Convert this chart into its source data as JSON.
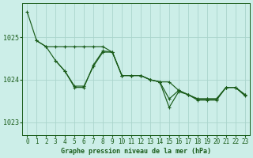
{
  "title": "Graphe pression niveau de la mer (hPa)",
  "bg_color": "#cceee8",
  "grid_color": "#aad4cc",
  "line_color": "#1a5c1a",
  "xlim": [
    -0.5,
    23.5
  ],
  "ylim": [
    1022.7,
    1025.8
  ],
  "yticks": [
    1023,
    1024,
    1025
  ],
  "xticks": [
    0,
    1,
    2,
    3,
    4,
    5,
    6,
    7,
    8,
    9,
    10,
    11,
    12,
    13,
    14,
    15,
    16,
    17,
    18,
    19,
    20,
    21,
    22,
    23
  ],
  "lines": [
    {
      "x": [
        0,
        1,
        2,
        3,
        4,
        5,
        6,
        7,
        8,
        9,
        10,
        11,
        12,
        13,
        14
      ],
      "y": [
        1025.6,
        1024.92,
        1024.78,
        1024.78,
        1024.78,
        1024.78,
        1024.78,
        1024.78,
        1024.78,
        1024.65,
        1024.1,
        1024.1,
        1024.1,
        1024.0,
        1023.95
      ]
    },
    {
      "x": [
        1,
        2,
        3,
        4,
        5,
        6,
        7,
        8,
        9,
        10,
        11,
        12,
        13,
        14
      ],
      "y": [
        1024.92,
        1024.78,
        1024.45,
        1024.2,
        1023.85,
        1023.85,
        1024.32,
        1024.65,
        1024.65,
        1024.1,
        1024.1,
        1024.1,
        1024.0,
        1023.95
      ]
    },
    {
      "x": [
        3,
        4,
        5,
        6,
        7,
        8,
        9,
        10,
        11,
        12,
        13,
        14
      ],
      "y": [
        1024.45,
        1024.2,
        1023.82,
        1023.82,
        1024.35,
        1024.68,
        1024.65,
        1024.1,
        1024.1,
        1024.1,
        1024.0,
        1023.95
      ]
    },
    {
      "x": [
        14,
        15,
        16,
        17,
        18,
        19,
        20,
        21,
        22,
        23
      ],
      "y": [
        1023.95,
        1023.95,
        1023.75,
        1023.65,
        1023.55,
        1023.55,
        1023.55,
        1023.82,
        1023.82,
        1023.65
      ]
    },
    {
      "x": [
        14,
        15,
        16,
        17,
        18,
        19,
        20,
        21,
        22,
        23
      ],
      "y": [
        1023.95,
        1023.55,
        1023.75,
        1023.65,
        1023.55,
        1023.55,
        1023.55,
        1023.82,
        1023.82,
        1023.65
      ]
    },
    {
      "x": [
        14,
        15,
        16,
        17,
        18,
        19,
        20,
        21,
        22,
        23
      ],
      "y": [
        1023.95,
        1023.35,
        1023.72,
        1023.65,
        1023.52,
        1023.52,
        1023.52,
        1023.82,
        1023.82,
        1023.62
      ]
    }
  ]
}
